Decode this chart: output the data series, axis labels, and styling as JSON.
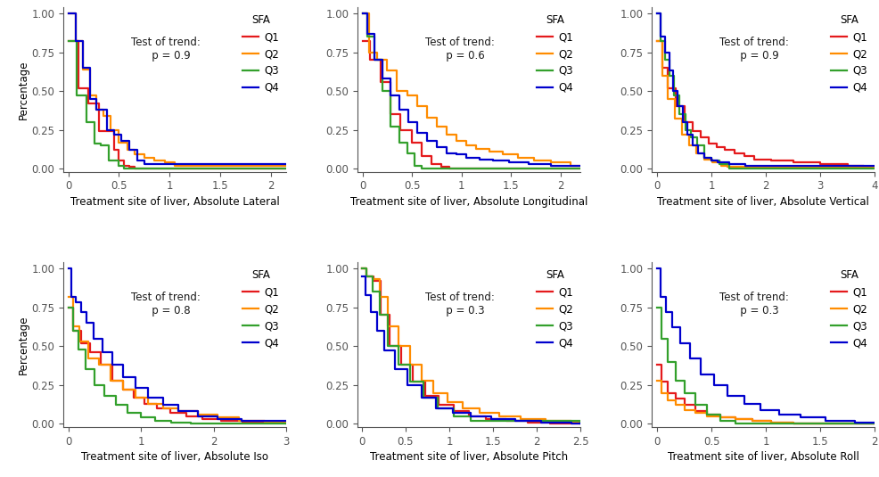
{
  "subplots": [
    {
      "title": "Treatment site of liver, Absolute Lateral",
      "trend_text": "Test of trend:\n   p = 0.9",
      "xlim": [
        -0.05,
        2.15
      ],
      "xticks": [
        0,
        0.5,
        1,
        1.5,
        2
      ],
      "xticklabels": [
        "0",
        "0.5",
        "1",
        "1.5",
        "2"
      ],
      "curves": {
        "Q1": {
          "x": [
            0,
            0.1,
            0.2,
            0.3,
            0.35,
            0.45,
            0.5,
            0.55,
            0.6,
            0.65,
            0.7,
            2.15
          ],
          "y": [
            0.82,
            0.52,
            0.42,
            0.24,
            0.24,
            0.12,
            0.05,
            0.02,
            0.01,
            0.0,
            0.0,
            0.0
          ]
        },
        "Q2": {
          "x": [
            0,
            0.07,
            0.14,
            0.21,
            0.28,
            0.35,
            0.42,
            0.5,
            0.58,
            0.65,
            0.75,
            0.85,
            0.95,
            1.05,
            2.15
          ],
          "y": [
            1.0,
            0.82,
            0.64,
            0.47,
            0.38,
            0.34,
            0.25,
            0.17,
            0.12,
            0.09,
            0.07,
            0.05,
            0.04,
            0.02,
            0.02
          ]
        },
        "Q3": {
          "x": [
            0,
            0.08,
            0.18,
            0.26,
            0.32,
            0.4,
            0.5,
            0.55,
            2.15
          ],
          "y": [
            0.82,
            0.47,
            0.3,
            0.16,
            0.15,
            0.05,
            0.02,
            0.0,
            0.0
          ]
        },
        "Q4": {
          "x": [
            0,
            0.07,
            0.14,
            0.21,
            0.28,
            0.38,
            0.45,
            0.52,
            0.6,
            0.68,
            0.75,
            2.15
          ],
          "y": [
            1.0,
            0.82,
            0.65,
            0.45,
            0.38,
            0.25,
            0.22,
            0.18,
            0.12,
            0.05,
            0.03,
            0.03
          ]
        }
      }
    },
    {
      "title": "Treatment site of liver, Absolute Longitudinal",
      "trend_text": "Test of trend:\n   p = 0.6",
      "xlim": [
        -0.05,
        2.2
      ],
      "xticks": [
        0,
        0.5,
        1,
        1.5,
        2
      ],
      "xticklabels": [
        "0",
        "0.5",
        "1",
        "1.5",
        "2"
      ],
      "curves": {
        "Q1": {
          "x": [
            0,
            0.08,
            0.18,
            0.28,
            0.38,
            0.5,
            0.6,
            0.7,
            0.8,
            0.88,
            2.2
          ],
          "y": [
            0.82,
            0.7,
            0.56,
            0.35,
            0.25,
            0.17,
            0.08,
            0.03,
            0.01,
            0.0,
            0.0
          ]
        },
        "Q2": {
          "x": [
            0,
            0.07,
            0.15,
            0.25,
            0.35,
            0.45,
            0.55,
            0.65,
            0.75,
            0.85,
            0.95,
            1.05,
            1.15,
            1.28,
            1.42,
            1.57,
            1.73,
            1.9,
            2.1,
            2.2
          ],
          "y": [
            1.0,
            0.75,
            0.7,
            0.63,
            0.5,
            0.47,
            0.4,
            0.33,
            0.27,
            0.22,
            0.18,
            0.15,
            0.13,
            0.11,
            0.09,
            0.07,
            0.05,
            0.04,
            0.02,
            0.02
          ]
        },
        "Q3": {
          "x": [
            0,
            0.05,
            0.12,
            0.2,
            0.28,
            0.37,
            0.45,
            0.53,
            0.6,
            2.2
          ],
          "y": [
            1.0,
            0.85,
            0.7,
            0.5,
            0.27,
            0.17,
            0.1,
            0.02,
            0.0,
            0.0
          ]
        },
        "Q4": {
          "x": [
            0,
            0.05,
            0.12,
            0.2,
            0.28,
            0.37,
            0.46,
            0.55,
            0.65,
            0.75,
            0.85,
            0.95,
            1.05,
            1.18,
            1.32,
            1.48,
            1.68,
            1.9,
            2.2
          ],
          "y": [
            1.0,
            0.87,
            0.7,
            0.58,
            0.47,
            0.38,
            0.3,
            0.23,
            0.18,
            0.14,
            0.1,
            0.09,
            0.07,
            0.06,
            0.05,
            0.04,
            0.03,
            0.02,
            0.02
          ]
        }
      }
    },
    {
      "title": "Treatment site of liver, Absolute Vertical",
      "trend_text": "Test of trend:\n   p = 0.9",
      "xlim": [
        -0.1,
        4.0
      ],
      "xticks": [
        0,
        1,
        2,
        3,
        4
      ],
      "xticklabels": [
        "0",
        "1",
        "2",
        "3",
        "4"
      ],
      "curves": {
        "Q1": {
          "x": [
            0,
            0.1,
            0.2,
            0.35,
            0.5,
            0.65,
            0.8,
            0.95,
            1.1,
            1.25,
            1.42,
            1.6,
            1.78,
            2.1,
            2.5,
            3.0,
            3.5,
            3.8,
            4.0
          ],
          "y": [
            0.82,
            0.65,
            0.52,
            0.4,
            0.3,
            0.24,
            0.2,
            0.16,
            0.14,
            0.12,
            0.1,
            0.08,
            0.06,
            0.05,
            0.04,
            0.03,
            0.02,
            0.01,
            0.01
          ]
        },
        "Q2": {
          "x": [
            0,
            0.09,
            0.2,
            0.32,
            0.45,
            0.58,
            0.72,
            0.86,
            1.02,
            1.18,
            1.3,
            4.0
          ],
          "y": [
            0.82,
            0.6,
            0.45,
            0.32,
            0.22,
            0.15,
            0.1,
            0.06,
            0.04,
            0.02,
            0.01,
            0.01
          ]
        },
        "Q3": {
          "x": [
            0,
            0.07,
            0.15,
            0.23,
            0.31,
            0.41,
            0.52,
            0.62,
            0.73,
            0.86,
            1.0,
            1.15,
            1.32,
            4.0
          ],
          "y": [
            1.0,
            0.82,
            0.7,
            0.6,
            0.47,
            0.35,
            0.25,
            0.2,
            0.15,
            0.07,
            0.05,
            0.03,
            0.0,
            0.0
          ]
        },
        "Q4": {
          "x": [
            0,
            0.06,
            0.14,
            0.22,
            0.3,
            0.38,
            0.47,
            0.56,
            0.66,
            0.76,
            0.87,
            1.0,
            1.12,
            1.32,
            1.62,
            4.0
          ],
          "y": [
            1.0,
            0.85,
            0.75,
            0.63,
            0.5,
            0.4,
            0.3,
            0.22,
            0.15,
            0.1,
            0.07,
            0.05,
            0.04,
            0.03,
            0.02,
            0.02
          ]
        }
      }
    },
    {
      "title": "Treatment site of liver, Absolute Iso",
      "trend_text": "Test of trend:\n   p = 0.8",
      "xlim": [
        -0.07,
        3.0
      ],
      "xticks": [
        0,
        1,
        2,
        3
      ],
      "xticklabels": [
        "0",
        "1",
        "2",
        "3"
      ],
      "curves": {
        "Q1": {
          "x": [
            0,
            0.07,
            0.18,
            0.3,
            0.45,
            0.6,
            0.75,
            0.9,
            1.05,
            1.22,
            1.4,
            1.62,
            1.85,
            2.1,
            2.4,
            3.0
          ],
          "y": [
            0.75,
            0.6,
            0.52,
            0.46,
            0.38,
            0.28,
            0.22,
            0.17,
            0.13,
            0.1,
            0.07,
            0.05,
            0.03,
            0.02,
            0.01,
            0.0
          ]
        },
        "Q2": {
          "x": [
            0,
            0.06,
            0.15,
            0.27,
            0.42,
            0.58,
            0.75,
            0.92,
            1.1,
            1.3,
            1.52,
            1.78,
            2.05,
            2.35,
            2.7,
            3.0
          ],
          "y": [
            0.82,
            0.63,
            0.53,
            0.42,
            0.38,
            0.28,
            0.22,
            0.17,
            0.13,
            0.1,
            0.08,
            0.06,
            0.04,
            0.02,
            0.01,
            0.01
          ]
        },
        "Q3": {
          "x": [
            0,
            0.06,
            0.14,
            0.24,
            0.36,
            0.5,
            0.66,
            0.82,
            1.0,
            1.2,
            1.42,
            1.68,
            3.0
          ],
          "y": [
            0.75,
            0.6,
            0.48,
            0.35,
            0.25,
            0.18,
            0.12,
            0.07,
            0.04,
            0.02,
            0.01,
            0.0,
            0.0
          ]
        },
        "Q4": {
          "x": [
            0,
            0.04,
            0.1,
            0.17,
            0.25,
            0.35,
            0.47,
            0.6,
            0.75,
            0.92,
            1.1,
            1.3,
            1.52,
            1.78,
            2.05,
            2.38,
            3.0
          ],
          "y": [
            1.0,
            0.82,
            0.78,
            0.72,
            0.65,
            0.55,
            0.46,
            0.38,
            0.3,
            0.23,
            0.17,
            0.12,
            0.08,
            0.05,
            0.03,
            0.02,
            0.02
          ]
        }
      }
    },
    {
      "title": "Treatment site of liver, Absolute Pitch",
      "trend_text": "Test of trend:\n   p = 0.3",
      "xlim": [
        -0.05,
        2.5
      ],
      "xticks": [
        0,
        0.5,
        1,
        1.5,
        2,
        2.5
      ],
      "xticklabels": [
        "0",
        "0.5",
        "1",
        "1.5",
        "2",
        "2.5"
      ],
      "curves": {
        "Q1": {
          "x": [
            0,
            0.05,
            0.13,
            0.22,
            0.32,
            0.45,
            0.58,
            0.72,
            0.88,
            1.05,
            1.22,
            1.42,
            1.65,
            1.9,
            2.15,
            2.5
          ],
          "y": [
            1.0,
            0.95,
            0.92,
            0.7,
            0.5,
            0.38,
            0.27,
            0.18,
            0.12,
            0.08,
            0.05,
            0.03,
            0.02,
            0.01,
            0.0,
            0.0
          ]
        },
        "Q2": {
          "x": [
            0,
            0.05,
            0.12,
            0.2,
            0.3,
            0.42,
            0.55,
            0.68,
            0.82,
            0.98,
            1.15,
            1.35,
            1.57,
            1.82,
            2.1,
            2.4,
            2.5
          ],
          "y": [
            1.0,
            0.95,
            0.93,
            0.82,
            0.63,
            0.5,
            0.38,
            0.28,
            0.2,
            0.14,
            0.1,
            0.07,
            0.05,
            0.03,
            0.02,
            0.01,
            0.01
          ]
        },
        "Q3": {
          "x": [
            0,
            0.05,
            0.12,
            0.2,
            0.3,
            0.42,
            0.55,
            0.7,
            0.87,
            1.05,
            1.25,
            2.5
          ],
          "y": [
            1.0,
            0.95,
            0.85,
            0.7,
            0.5,
            0.38,
            0.27,
            0.17,
            0.1,
            0.05,
            0.02,
            0.0
          ]
        },
        "Q4": {
          "x": [
            0,
            0.04,
            0.1,
            0.17,
            0.26,
            0.38,
            0.52,
            0.68,
            0.85,
            1.04,
            1.25,
            1.48,
            1.75,
            2.05,
            2.4,
            2.5
          ],
          "y": [
            0.95,
            0.83,
            0.72,
            0.6,
            0.47,
            0.35,
            0.25,
            0.17,
            0.1,
            0.07,
            0.05,
            0.03,
            0.02,
            0.01,
            0.0,
            0.0
          ]
        }
      }
    },
    {
      "title": "Treatment site of liver, Absolute Roll",
      "trend_text": "Test of trend:\n   p = 0.3",
      "xlim": [
        -0.05,
        2.0
      ],
      "xticks": [
        0,
        0.5,
        1,
        1.5,
        2
      ],
      "xticklabels": [
        "0",
        "0.5",
        "1",
        "1.5",
        "2"
      ],
      "curves": {
        "Q1": {
          "x": [
            0,
            0.04,
            0.1,
            0.17,
            0.25,
            0.35,
            0.46,
            0.58,
            0.72,
            0.88,
            1.05,
            1.25,
            1.5,
            1.8,
            2.0
          ],
          "y": [
            0.38,
            0.27,
            0.2,
            0.16,
            0.12,
            0.08,
            0.06,
            0.04,
            0.03,
            0.02,
            0.01,
            0.0,
            0.0,
            0.0,
            0.0
          ]
        },
        "Q2": {
          "x": [
            0,
            0.04,
            0.1,
            0.17,
            0.25,
            0.35,
            0.46,
            0.58,
            0.72,
            0.88,
            1.05,
            1.25,
            1.5,
            1.78,
            2.0
          ],
          "y": [
            0.28,
            0.2,
            0.15,
            0.12,
            0.09,
            0.07,
            0.05,
            0.04,
            0.03,
            0.02,
            0.01,
            0.0,
            0.0,
            0.0,
            0.0
          ]
        },
        "Q3": {
          "x": [
            0,
            0.04,
            0.1,
            0.17,
            0.25,
            0.35,
            0.46,
            0.58,
            0.72,
            2.0
          ],
          "y": [
            0.75,
            0.55,
            0.4,
            0.28,
            0.2,
            0.12,
            0.06,
            0.02,
            0.0,
            0.0
          ]
        },
        "Q4": {
          "x": [
            0,
            0.03,
            0.08,
            0.14,
            0.21,
            0.3,
            0.4,
            0.52,
            0.65,
            0.8,
            0.95,
            1.12,
            1.32,
            1.55,
            1.82,
            2.0
          ],
          "y": [
            1.0,
            0.82,
            0.72,
            0.62,
            0.52,
            0.42,
            0.32,
            0.25,
            0.18,
            0.13,
            0.09,
            0.06,
            0.04,
            0.02,
            0.01,
            0.01
          ]
        }
      }
    }
  ],
  "colors": {
    "Q1": "#e41a1c",
    "Q2": "#ff8c00",
    "Q3": "#33a02c",
    "Q4": "#0000cd"
  },
  "legend_title": "SFA",
  "ylabel": "Percentage",
  "yticks": [
    0.0,
    0.25,
    0.5,
    0.75,
    1.0
  ],
  "yticklabels": [
    "0.00",
    "0.25",
    "0.50",
    "0.75",
    "1.00"
  ],
  "ylim": [
    -0.02,
    1.04
  ],
  "line_width": 1.6,
  "font_size": 8.5,
  "annotation_fontsize": 8.5,
  "annotation_color": "#1a1a1a",
  "trend_x": 0.46,
  "trend_y": 0.82
}
